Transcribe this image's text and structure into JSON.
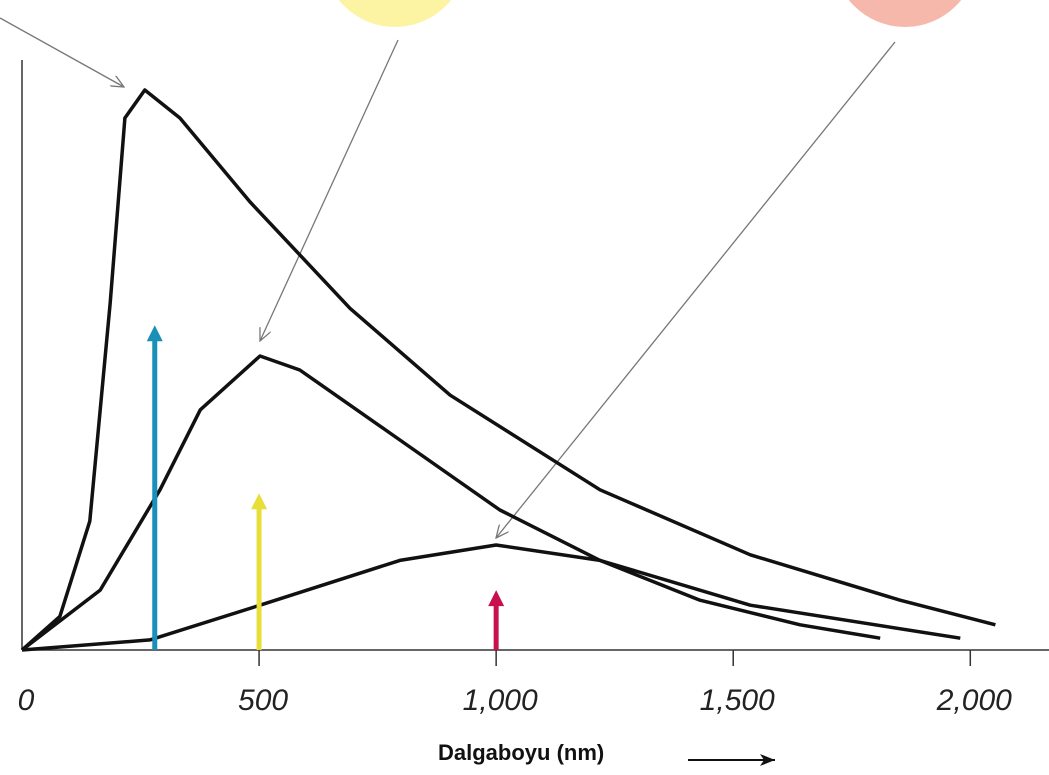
{
  "chart_data": {
    "type": "line",
    "xlabel": "Dalgaboyu (nm)",
    "xlim": [
      0,
      2166
    ],
    "ylim": [
      0,
      100
    ],
    "xticks": [
      0,
      500,
      {
        "value": 1000,
        "label": "1,000"
      },
      {
        "value": 1500,
        "label": "1,500"
      },
      {
        "value": 2000,
        "label": "2,000"
      }
    ],
    "series": [
      {
        "color": "#111111",
        "x": [
          0,
          80,
          143,
          186,
          217,
          259,
          333,
          481,
          692,
          903,
          1219,
          1536,
          1852,
          2053
        ],
        "values": [
          0,
          6,
          23,
          62,
          95,
          100,
          95,
          80,
          61,
          45.5,
          28.6,
          17,
          8.9,
          4.5
        ]
      },
      {
        "color": "#111111",
        "x": [
          0,
          165,
          291,
          376,
          502,
          586,
          797,
          1008,
          1219,
          1430,
          1641,
          1810
        ],
        "values": [
          0,
          10.7,
          28.6,
          42.9,
          52.5,
          50,
          37.5,
          25,
          16,
          8.9,
          4.5,
          2.1
        ]
      },
      {
        "color": "#111111",
        "x": [
          0,
          270,
          502,
          797,
          1000,
          1219,
          1536,
          1979
        ],
        "values": [
          0,
          1.8,
          8,
          16,
          18.75,
          16,
          8,
          2.1
        ]
      }
    ],
    "peak_markers": [
      {
        "x": 280,
        "value": 58,
        "color": "#1a8fb8"
      },
      {
        "x": 500,
        "value": 28,
        "color": "#e8de3a"
      },
      {
        "x": 1000,
        "value": 10.7,
        "color": "#c8104f"
      }
    ]
  }
}
